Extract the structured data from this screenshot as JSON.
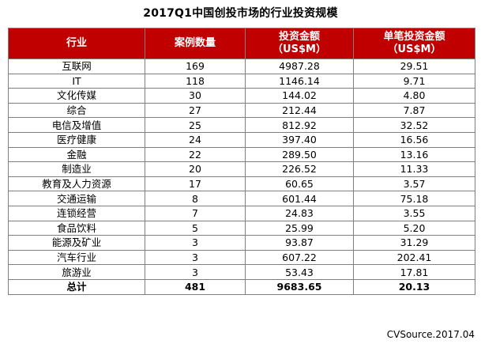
{
  "chart_data": {
    "type": "table",
    "title": "2017Q1中国创投市场的行业投资规模",
    "columns": [
      {
        "line1": "行业",
        "line2": ""
      },
      {
        "line1": "案例数量",
        "line2": ""
      },
      {
        "line1": "投资金额",
        "line2": "（US$M）"
      },
      {
        "line1": "单笔投资金额",
        "line2": "（US$M）"
      }
    ],
    "rows": [
      [
        "互联网",
        "169",
        "4987.28",
        "29.51"
      ],
      [
        "IT",
        "118",
        "1146.14",
        "9.71"
      ],
      [
        "文化传媒",
        "30",
        "144.02",
        "4.80"
      ],
      [
        "综合",
        "27",
        "212.44",
        "7.87"
      ],
      [
        "电信及增值",
        "25",
        "812.92",
        "32.52"
      ],
      [
        "医疗健康",
        "24",
        "397.40",
        "16.56"
      ],
      [
        "金融",
        "22",
        "289.50",
        "13.16"
      ],
      [
        "制造业",
        "20",
        "226.52",
        "11.33"
      ],
      [
        "教育及人力资源",
        "17",
        "60.65",
        "3.57"
      ],
      [
        "交通运输",
        "8",
        "601.44",
        "75.18"
      ],
      [
        "连锁经营",
        "7",
        "24.83",
        "3.55"
      ],
      [
        "食品饮料",
        "5",
        "25.99",
        "5.20"
      ],
      [
        "能源及矿业",
        "3",
        "93.87",
        "31.29"
      ],
      [
        "汽车行业",
        "3",
        "607.22",
        "202.41"
      ],
      [
        "旅游业",
        "3",
        "53.43",
        "17.81"
      ]
    ],
    "total": [
      "总计",
      "481",
      "9683.65",
      "20.13"
    ]
  },
  "source": "CVSource.2017.04",
  "colors": {
    "header_bg": "#c00000",
    "header_text": "#ffffff",
    "border": "#7f7f7f"
  }
}
